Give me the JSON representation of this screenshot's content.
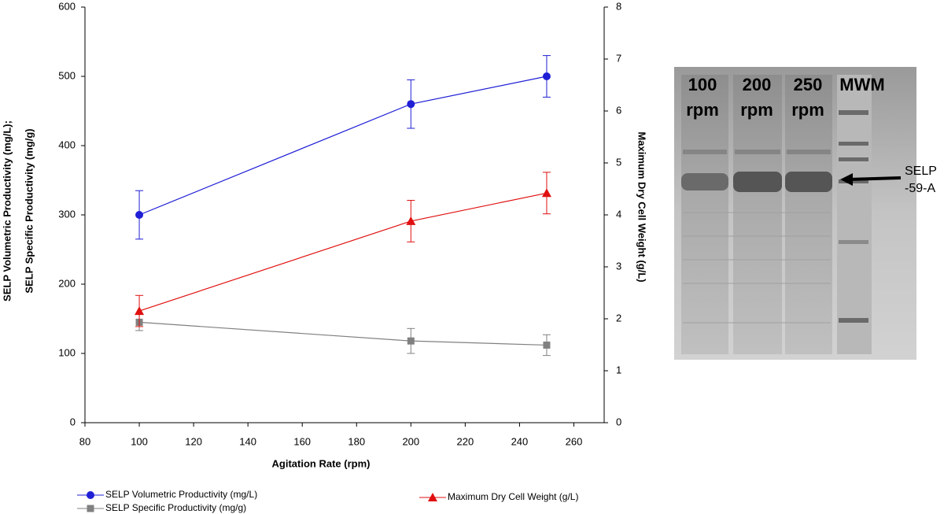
{
  "chart_data": {
    "type": "line",
    "xlabel": "Agitation Rate (rpm)",
    "ylabel": [
      "SELP Volumetric Productivity (mg/L);",
      "SELP Specific Productivity (mg/g)"
    ],
    "y2label": "Maximum Dry Cell Weight (g/L)",
    "x": [
      100,
      200,
      250
    ],
    "xlim": [
      80,
      270
    ],
    "xticks": [
      80,
      100,
      120,
      140,
      160,
      180,
      200,
      220,
      240,
      260
    ],
    "ylim": [
      0,
      600
    ],
    "yticks": [
      0,
      100,
      200,
      300,
      400,
      500,
      600
    ],
    "y2lim": [
      0,
      8
    ],
    "y2ticks": [
      0,
      1,
      2,
      3,
      4,
      5,
      6,
      7,
      8
    ],
    "series": [
      {
        "name": "SELP Volumetric Productivity (mg/L)",
        "color": "#1f1fd6",
        "marker": "circle",
        "values": [
          300,
          460,
          500
        ],
        "errors": [
          35,
          35,
          30
        ]
      },
      {
        "name": "SELP Specific Productivity (mg/g)",
        "color": "#808080",
        "marker": "square",
        "values": [
          145,
          118,
          112
        ],
        "errors": [
          12,
          18,
          15
        ]
      },
      {
        "name": "Maximum Dry Cell Weight (g/L)",
        "color": "#e01010",
        "marker": "triangle",
        "axis": "y2",
        "values": [
          2.15,
          3.88,
          4.42
        ],
        "errors": [
          0.3,
          0.4,
          0.4
        ]
      }
    ]
  },
  "gel": {
    "lanes": [
      [
        "100",
        "rpm"
      ],
      [
        "200",
        "rpm"
      ],
      [
        "250",
        "rpm"
      ],
      [
        "MWM"
      ]
    ],
    "annotation": [
      "SELP",
      "-59-A"
    ]
  }
}
